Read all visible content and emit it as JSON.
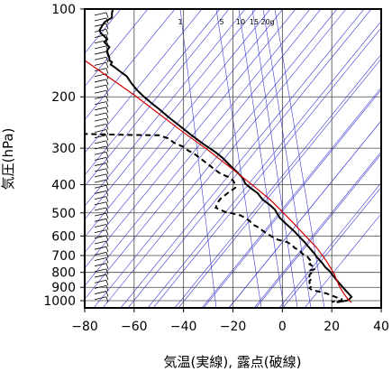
{
  "chart_data": {
    "type": "line",
    "title": "",
    "xlabel": "気温(実線), 露点(破線)",
    "ylabel": "気圧(hPa)",
    "xlim": [
      -80,
      40
    ],
    "ylim": [
      1050,
      100
    ],
    "y_scale": "log",
    "x_ticks": [
      -80,
      -60,
      -40,
      -20,
      0,
      20,
      40
    ],
    "y_ticks": [
      100,
      200,
      300,
      400,
      500,
      600,
      700,
      800,
      900,
      1000
    ],
    "mixing_ratio_labels": [
      "1",
      "5",
      "10",
      "15",
      "20g"
    ],
    "series": [
      {
        "style": "solid",
        "color": "#000000",
        "points": [
          [
            -68.5,
            100
          ],
          [
            -69,
            103
          ],
          [
            -69,
            107
          ],
          [
            -72,
            111
          ],
          [
            -74,
            118
          ],
          [
            -73.5,
            121
          ],
          [
            -72,
            124
          ],
          [
            -71,
            127
          ],
          [
            -72,
            130
          ],
          [
            -70,
            135
          ],
          [
            -71,
            139
          ],
          [
            -70.5,
            143
          ],
          [
            -70,
            147
          ],
          [
            -70,
            150
          ],
          [
            -69,
            152
          ],
          [
            -69.5,
            155
          ],
          [
            -68,
            158
          ],
          [
            -66,
            163
          ],
          [
            -63,
            170
          ],
          [
            -61,
            180
          ],
          [
            -59,
            189
          ],
          [
            -56,
            200
          ],
          [
            -53,
            210
          ],
          [
            -50,
            220
          ],
          [
            -46,
            235
          ],
          [
            -42,
            250
          ],
          [
            -37,
            270
          ],
          [
            -32,
            290
          ],
          [
            -27,
            310
          ],
          [
            -24,
            325
          ],
          [
            -21,
            345
          ],
          [
            -18,
            365
          ],
          [
            -16,
            380
          ],
          [
            -15,
            397
          ],
          [
            -13,
            410
          ],
          [
            -10,
            428
          ],
          [
            -8,
            450
          ],
          [
            -5,
            470
          ],
          [
            -3,
            487
          ],
          [
            -2,
            505
          ],
          [
            -1,
            520
          ],
          [
            1,
            540
          ],
          [
            3,
            560
          ],
          [
            5,
            580
          ],
          [
            7,
            605
          ],
          [
            9,
            630
          ],
          [
            11,
            660
          ],
          [
            13,
            690
          ],
          [
            14,
            710
          ],
          [
            16,
            740
          ],
          [
            17.5,
            770
          ],
          [
            19,
            790
          ],
          [
            20,
            810
          ],
          [
            21,
            830
          ],
          [
            22,
            850
          ],
          [
            23,
            870
          ],
          [
            24,
            890
          ],
          [
            25,
            910
          ],
          [
            26,
            930
          ],
          [
            27,
            950
          ],
          [
            28,
            970
          ],
          [
            27,
            990
          ],
          [
            26,
            1000
          ],
          [
            24,
            1005
          ],
          [
            23,
            1010
          ],
          [
            22,
            1013
          ]
        ]
      },
      {
        "style": "dashed",
        "color": "#000000",
        "points": [
          [
            -81,
            268
          ],
          [
            -65,
            270
          ],
          [
            -50,
            271
          ],
          [
            -46,
            278
          ],
          [
            -44,
            287
          ],
          [
            -40,
            297
          ],
          [
            -38,
            306
          ],
          [
            -36,
            312
          ],
          [
            -33,
            326
          ],
          [
            -30,
            341
          ],
          [
            -27,
            357
          ],
          [
            -25,
            367
          ],
          [
            -22,
            376
          ],
          [
            -20,
            387
          ],
          [
            -19,
            400
          ],
          [
            -19,
            410
          ],
          [
            -22,
            427
          ],
          [
            -25,
            447
          ],
          [
            -26,
            458
          ],
          [
            -27,
            480
          ],
          [
            -23,
            497
          ],
          [
            -21,
            500
          ],
          [
            -19,
            505
          ],
          [
            -17,
            510
          ],
          [
            -15,
            520
          ],
          [
            -13,
            535
          ],
          [
            -12,
            548
          ],
          [
            -10,
            559
          ],
          [
            -8,
            575
          ],
          [
            -6,
            590
          ],
          [
            -3,
            612
          ],
          [
            -2,
            617
          ],
          [
            2,
            630
          ],
          [
            4,
            645
          ],
          [
            5,
            660
          ],
          [
            7,
            672
          ],
          [
            8,
            690
          ],
          [
            10,
            705
          ],
          [
            11,
            722
          ],
          [
            12,
            738
          ],
          [
            11,
            750
          ],
          [
            13,
            768
          ],
          [
            13,
            780
          ],
          [
            11,
            788
          ],
          [
            12,
            800
          ],
          [
            11,
            815
          ],
          [
            11,
            828
          ],
          [
            12,
            840
          ],
          [
            11,
            855
          ],
          [
            11,
            870
          ],
          [
            12,
            890
          ],
          [
            11,
            905
          ],
          [
            12,
            920
          ],
          [
            15,
            932
          ],
          [
            18,
            945
          ],
          [
            20,
            960
          ],
          [
            22,
            975
          ],
          [
            24,
            988
          ],
          [
            24,
            1000
          ],
          [
            21,
            1005
          ],
          [
            20,
            1010
          ]
        ]
      },
      {
        "style": "solid",
        "color": "#d40000",
        "points": [
          [
            -81,
            148
          ],
          [
            -60,
            197
          ],
          [
            -40,
            265
          ],
          [
            -30,
            305
          ],
          [
            -20,
            355
          ],
          [
            -12,
            402
          ],
          [
            -5,
            450
          ],
          [
            0,
            495
          ],
          [
            5,
            548
          ],
          [
            10,
            608
          ],
          [
            14,
            660
          ],
          [
            18,
            735
          ],
          [
            21,
            810
          ],
          [
            23,
            890
          ],
          [
            25,
            950
          ],
          [
            27,
            1000
          ],
          [
            28,
            1013
          ]
        ]
      }
    ],
    "wind_barbs": {
      "description": "wind barbs plotted along left axis"
    }
  }
}
